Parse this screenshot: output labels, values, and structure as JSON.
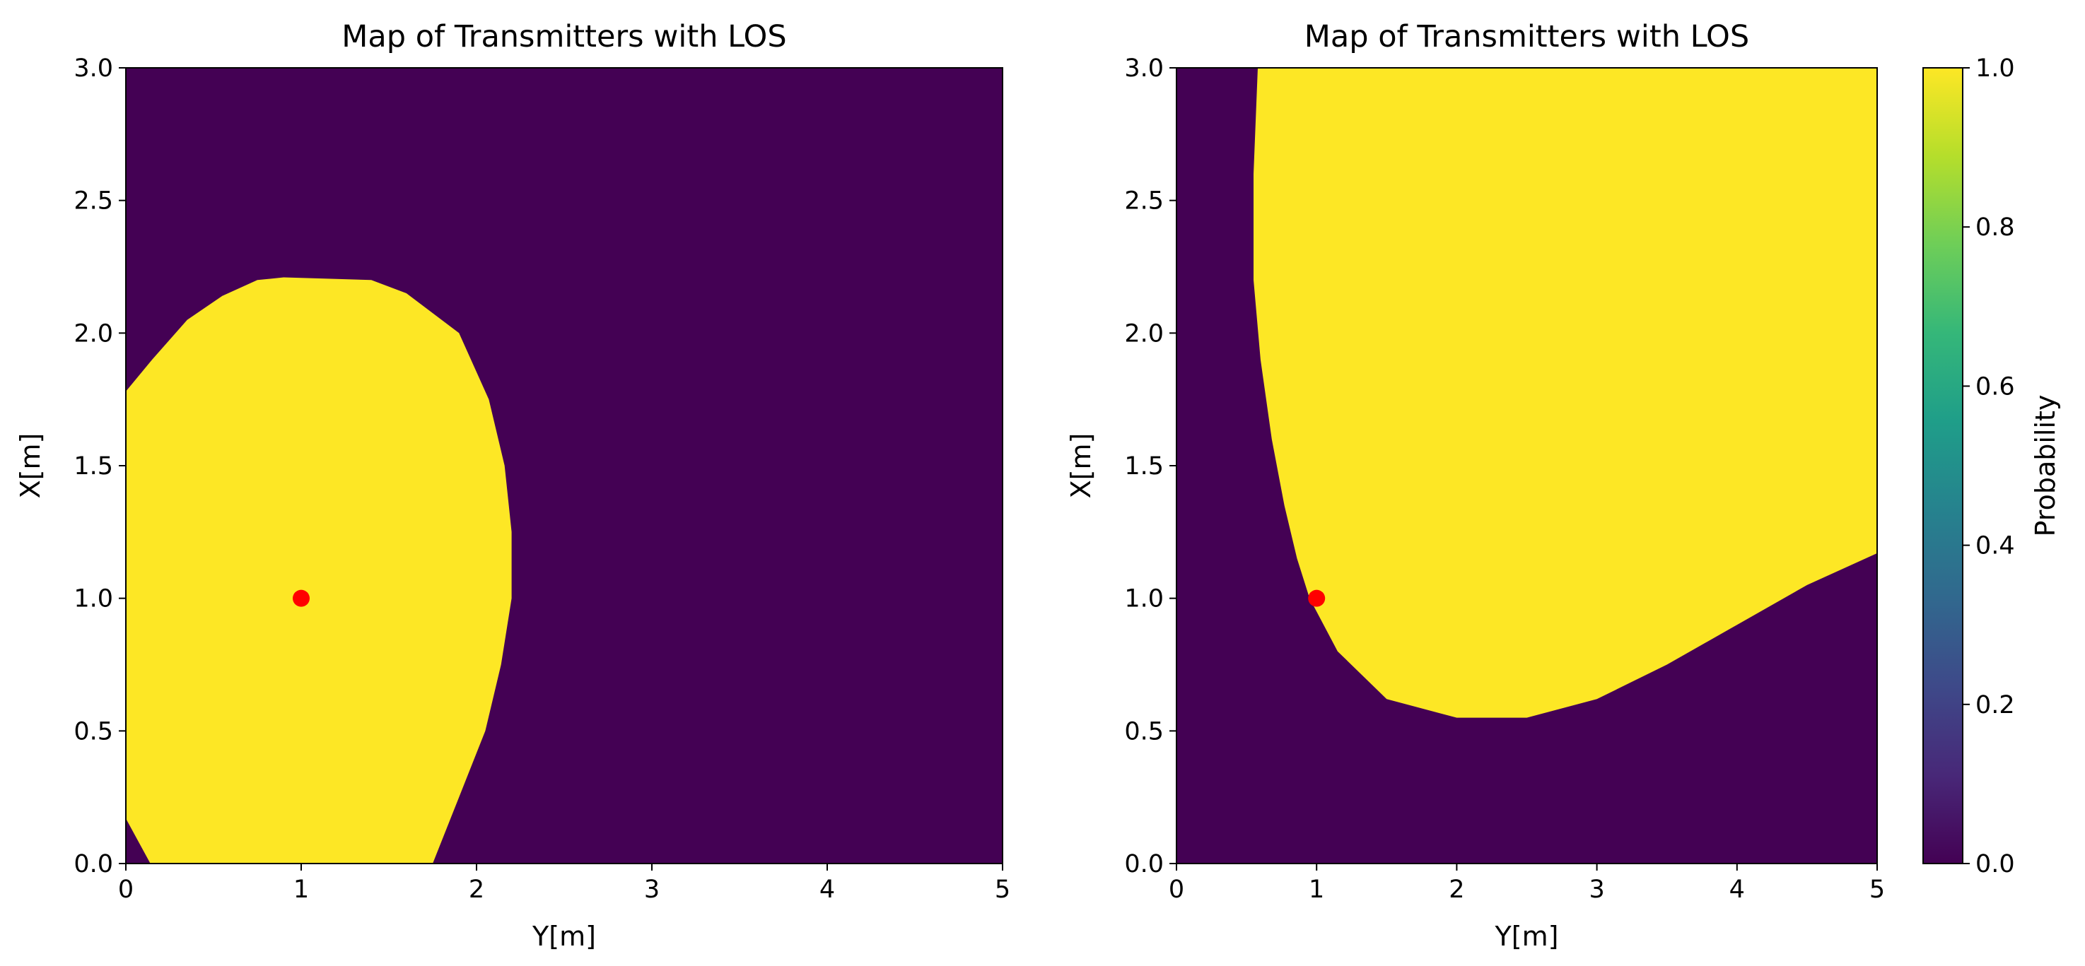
{
  "colors": {
    "inside": "#fde725",
    "outside": "#440154",
    "marker": "#ff0000",
    "colormap": [
      "#440154",
      "#482878",
      "#3e4989",
      "#31688e",
      "#26828e",
      "#1f9e89",
      "#35b779",
      "#6ece58",
      "#b5de2b",
      "#fde725"
    ]
  },
  "chart_data": [
    {
      "type": "heatmap",
      "title": "Map of Transmitters with LOS",
      "xlabel": "Y[m]",
      "ylabel": "X[m]",
      "xlim": [
        0,
        5
      ],
      "ylim": [
        0,
        3
      ],
      "xticks": [
        0,
        1,
        2,
        3,
        4,
        5
      ],
      "yticks": [
        0.0,
        0.5,
        1.0,
        1.5,
        2.0,
        2.5,
        3.0
      ],
      "xtick_labels": [
        "0",
        "1",
        "2",
        "3",
        "4",
        "5"
      ],
      "ytick_labels": [
        "0.0",
        "0.5",
        "1.0",
        "1.5",
        "2.0",
        "2.5",
        "3.0"
      ],
      "values": [
        0,
        1
      ],
      "marker": {
        "x": 1.0,
        "y": 1.0,
        "color": "red"
      },
      "region_value_1_boundary": [
        [
          0.0,
          0.17
        ],
        [
          0.14,
          0.0
        ],
        [
          1.75,
          0.0
        ],
        [
          1.9,
          0.25
        ],
        [
          2.05,
          0.5
        ],
        [
          2.14,
          0.75
        ],
        [
          2.2,
          1.0
        ],
        [
          2.2,
          1.25
        ],
        [
          2.16,
          1.5
        ],
        [
          2.07,
          1.75
        ],
        [
          1.9,
          2.0
        ],
        [
          1.6,
          2.15
        ],
        [
          1.4,
          2.2
        ],
        [
          0.9,
          2.21
        ],
        [
          0.75,
          2.2
        ],
        [
          0.55,
          2.14
        ],
        [
          0.35,
          2.05
        ],
        [
          0.15,
          1.9
        ],
        [
          0.0,
          1.78
        ]
      ]
    },
    {
      "type": "heatmap",
      "title": "Map of Transmitters with LOS",
      "xlabel": "Y[m]",
      "ylabel": "X[m]",
      "xlim": [
        0,
        5
      ],
      "ylim": [
        0,
        3
      ],
      "xticks": [
        0,
        1,
        2,
        3,
        4,
        5
      ],
      "yticks": [
        0.0,
        0.5,
        1.0,
        1.5,
        2.0,
        2.5,
        3.0
      ],
      "xtick_labels": [
        "0",
        "1",
        "2",
        "3",
        "4",
        "5"
      ],
      "ytick_labels": [
        "0.0",
        "0.5",
        "1.0",
        "1.5",
        "2.0",
        "2.5",
        "3.0"
      ],
      "values": [
        0,
        1
      ],
      "marker": {
        "x": 1.0,
        "y": 1.0,
        "color": "red"
      },
      "region_value_1_boundary": [
        [
          0.58,
          3.0
        ],
        [
          0.55,
          2.6
        ],
        [
          0.55,
          2.2
        ],
        [
          0.6,
          1.9
        ],
        [
          0.68,
          1.6
        ],
        [
          0.77,
          1.35
        ],
        [
          0.86,
          1.15
        ],
        [
          0.95,
          1.0
        ],
        [
          1.15,
          0.8
        ],
        [
          1.5,
          0.62
        ],
        [
          2.0,
          0.55
        ],
        [
          2.5,
          0.55
        ],
        [
          3.0,
          0.62
        ],
        [
          3.5,
          0.75
        ],
        [
          4.0,
          0.9
        ],
        [
          4.5,
          1.05
        ],
        [
          5.0,
          1.17
        ],
        [
          5.0,
          3.0
        ]
      ]
    }
  ],
  "colorbar": {
    "label": "Probability",
    "range": [
      0.0,
      1.0
    ],
    "ticks": [
      0.0,
      0.2,
      0.4,
      0.6,
      0.8,
      1.0
    ],
    "tick_labels": [
      "0.0",
      "0.2",
      "0.4",
      "0.6",
      "0.8",
      "1.0"
    ]
  }
}
